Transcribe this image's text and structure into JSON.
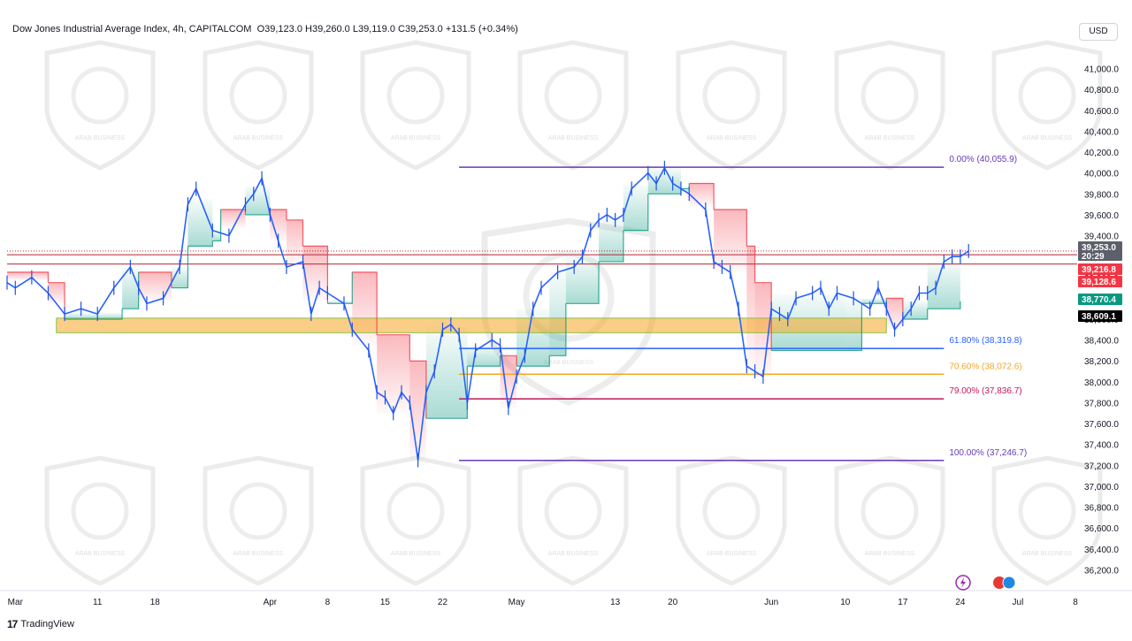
{
  "header": {
    "title": "Dow Jones Industrial Average Index, 4h, CAPITALCOM",
    "ohlc": "O39,123.0  H39,260.0  L39,119.0  C39,253.0  +131.5 (+0.34%)",
    "currency_button": "USD"
  },
  "footer": {
    "brand_logo": "17",
    "brand_name": "TradingView"
  },
  "watermark": {
    "text": "ARAB BUSINESS"
  },
  "chart_data": {
    "type": "line",
    "ylim": [
      36000,
      41200
    ],
    "y_ticks": [
      "41,000.0",
      "40,800.0",
      "40,600.0",
      "40,400.0",
      "40,200.0",
      "40,000.0",
      "39,800.0",
      "39,600.0",
      "39,400.0",
      "39,200.0",
      "39,000.0",
      "38,800.0",
      "38,600.0",
      "38,400.0",
      "38,200.0",
      "38,000.0",
      "37,800.0",
      "37,600.0",
      "37,400.0",
      "37,200.0",
      "37,000.0",
      "36,800.0",
      "36,600.0",
      "36,400.0",
      "36,200.0"
    ],
    "y_tick_values": [
      41000,
      40800,
      40600,
      40400,
      40200,
      40000,
      39800,
      39600,
      39400,
      39200,
      39000,
      38800,
      38600,
      38400,
      38200,
      38000,
      37800,
      37600,
      37400,
      37200,
      37000,
      36800,
      36600,
      36400,
      36200
    ],
    "x_ticks": [
      {
        "label": "Mar",
        "day": 1
      },
      {
        "label": "11",
        "day": 11
      },
      {
        "label": "18",
        "day": 18
      },
      {
        "label": "Apr",
        "day": 32
      },
      {
        "label": "8",
        "day": 39
      },
      {
        "label": "15",
        "day": 46
      },
      {
        "label": "22",
        "day": 53
      },
      {
        "label": "May",
        "day": 62
      },
      {
        "label": "13",
        "day": 74
      },
      {
        "label": "20",
        "day": 81
      },
      {
        "label": "Jun",
        "day": 93
      },
      {
        "label": "10",
        "day": 102
      },
      {
        "label": "17",
        "day": 109
      },
      {
        "label": "24",
        "day": 116
      },
      {
        "label": "Jul",
        "day": 123
      },
      {
        "label": "8",
        "day": 130
      }
    ],
    "price_series": [
      {
        "day": 0,
        "value": 38950
      },
      {
        "day": 1,
        "value": 38900
      },
      {
        "day": 3,
        "value": 39000
      },
      {
        "day": 5,
        "value": 38850
      },
      {
        "day": 7,
        "value": 38650
      },
      {
        "day": 9,
        "value": 38700
      },
      {
        "day": 11,
        "value": 38650
      },
      {
        "day": 13,
        "value": 38900
      },
      {
        "day": 15,
        "value": 39100
      },
      {
        "day": 16,
        "value": 38900
      },
      {
        "day": 17,
        "value": 38750
      },
      {
        "day": 19,
        "value": 38800
      },
      {
        "day": 21,
        "value": 39100
      },
      {
        "day": 22,
        "value": 39700
      },
      {
        "day": 23,
        "value": 39850
      },
      {
        "day": 25,
        "value": 39450
      },
      {
        "day": 27,
        "value": 39400
      },
      {
        "day": 29,
        "value": 39700
      },
      {
        "day": 30,
        "value": 39800
      },
      {
        "day": 31,
        "value": 39950
      },
      {
        "day": 32,
        "value": 39600
      },
      {
        "day": 33,
        "value": 39350
      },
      {
        "day": 34,
        "value": 39100
      },
      {
        "day": 36,
        "value": 39150
      },
      {
        "day": 37,
        "value": 38650
      },
      {
        "day": 38,
        "value": 38900
      },
      {
        "day": 39,
        "value": 38850
      },
      {
        "day": 41,
        "value": 38750
      },
      {
        "day": 42,
        "value": 38500
      },
      {
        "day": 44,
        "value": 38300
      },
      {
        "day": 45,
        "value": 37900
      },
      {
        "day": 46,
        "value": 37850
      },
      {
        "day": 47,
        "value": 37700
      },
      {
        "day": 48,
        "value": 37900
      },
      {
        "day": 49,
        "value": 37800
      },
      {
        "day": 50,
        "value": 37250
      },
      {
        "day": 51,
        "value": 37900
      },
      {
        "day": 52,
        "value": 38100
      },
      {
        "day": 53,
        "value": 38500
      },
      {
        "day": 54,
        "value": 38550
      },
      {
        "day": 55,
        "value": 38450
      },
      {
        "day": 56,
        "value": 37800
      },
      {
        "day": 57,
        "value": 38300
      },
      {
        "day": 59,
        "value": 38400
      },
      {
        "day": 60,
        "value": 38350
      },
      {
        "day": 61,
        "value": 37750
      },
      {
        "day": 62,
        "value": 38050
      },
      {
        "day": 63,
        "value": 38250
      },
      {
        "day": 64,
        "value": 38700
      },
      {
        "day": 65,
        "value": 38900
      },
      {
        "day": 67,
        "value": 39050
      },
      {
        "day": 69,
        "value": 39100
      },
      {
        "day": 70,
        "value": 39200
      },
      {
        "day": 71,
        "value": 39450
      },
      {
        "day": 72,
        "value": 39550
      },
      {
        "day": 73,
        "value": 39600
      },
      {
        "day": 74,
        "value": 39550
      },
      {
        "day": 75,
        "value": 39600
      },
      {
        "day": 76,
        "value": 39850
      },
      {
        "day": 78,
        "value": 40000
      },
      {
        "day": 79,
        "value": 39900
      },
      {
        "day": 80,
        "value": 40050
      },
      {
        "day": 81,
        "value": 39900
      },
      {
        "day": 82,
        "value": 39850
      },
      {
        "day": 83,
        "value": 39800
      },
      {
        "day": 85,
        "value": 39650
      },
      {
        "day": 86,
        "value": 39150
      },
      {
        "day": 87,
        "value": 39100
      },
      {
        "day": 88,
        "value": 39050
      },
      {
        "day": 89,
        "value": 38700
      },
      {
        "day": 90,
        "value": 38150
      },
      {
        "day": 91,
        "value": 38100
      },
      {
        "day": 92,
        "value": 38050
      },
      {
        "day": 93,
        "value": 38700
      },
      {
        "day": 94,
        "value": 38650
      },
      {
        "day": 95,
        "value": 38600
      },
      {
        "day": 96,
        "value": 38800
      },
      {
        "day": 98,
        "value": 38850
      },
      {
        "day": 99,
        "value": 38900
      },
      {
        "day": 100,
        "value": 38700
      },
      {
        "day": 101,
        "value": 38850
      },
      {
        "day": 103,
        "value": 38800
      },
      {
        "day": 105,
        "value": 38700
      },
      {
        "day": 106,
        "value": 38900
      },
      {
        "day": 107,
        "value": 38700
      },
      {
        "day": 108,
        "value": 38500
      },
      {
        "day": 109,
        "value": 38600
      },
      {
        "day": 110,
        "value": 38700
      },
      {
        "day": 111,
        "value": 38850
      },
      {
        "day": 112,
        "value": 38850
      },
      {
        "day": 113,
        "value": 38900
      },
      {
        "day": 114,
        "value": 39150
      },
      {
        "day": 115,
        "value": 39200
      },
      {
        "day": 116,
        "value": 39200
      },
      {
        "day": 117,
        "value": 39253
      }
    ],
    "supertrend": [
      {
        "day": 0,
        "value": 39050,
        "trend": "down"
      },
      {
        "day": 5,
        "value": 38950,
        "trend": "down"
      },
      {
        "day": 7,
        "value": 38600,
        "trend": "up"
      },
      {
        "day": 14,
        "value": 38700,
        "trend": "up"
      },
      {
        "day": 16,
        "value": 39050,
        "trend": "down"
      },
      {
        "day": 20,
        "value": 38900,
        "trend": "up"
      },
      {
        "day": 22,
        "value": 39300,
        "trend": "up"
      },
      {
        "day": 25,
        "value": 39350,
        "trend": "up"
      },
      {
        "day": 26,
        "value": 39650,
        "trend": "down"
      },
      {
        "day": 29,
        "value": 39600,
        "trend": "up"
      },
      {
        "day": 32,
        "value": 39650,
        "trend": "down"
      },
      {
        "day": 34,
        "value": 39550,
        "trend": "down"
      },
      {
        "day": 36,
        "value": 39300,
        "trend": "down"
      },
      {
        "day": 39,
        "value": 38750,
        "trend": "up"
      },
      {
        "day": 42,
        "value": 39050,
        "trend": "down"
      },
      {
        "day": 45,
        "value": 38450,
        "trend": "down"
      },
      {
        "day": 49,
        "value": 38200,
        "trend": "down"
      },
      {
        "day": 51,
        "value": 37650,
        "trend": "up"
      },
      {
        "day": 56,
        "value": 38150,
        "trend": "up"
      },
      {
        "day": 60,
        "value": 38250,
        "trend": "down"
      },
      {
        "day": 62,
        "value": 38150,
        "trend": "up"
      },
      {
        "day": 66,
        "value": 38250,
        "trend": "up"
      },
      {
        "day": 68,
        "value": 38750,
        "trend": "up"
      },
      {
        "day": 72,
        "value": 39150,
        "trend": "up"
      },
      {
        "day": 75,
        "value": 39450,
        "trend": "up"
      },
      {
        "day": 78,
        "value": 39800,
        "trend": "up"
      },
      {
        "day": 82,
        "value": 39850,
        "trend": "up"
      },
      {
        "day": 83,
        "value": 39900,
        "trend": "down"
      },
      {
        "day": 86,
        "value": 39650,
        "trend": "down"
      },
      {
        "day": 90,
        "value": 39300,
        "trend": "down"
      },
      {
        "day": 91,
        "value": 38950,
        "trend": "down"
      },
      {
        "day": 93,
        "value": 38300,
        "trend": "up"
      },
      {
        "day": 102,
        "value": 38300,
        "trend": "up"
      },
      {
        "day": 104,
        "value": 38750,
        "trend": "up"
      },
      {
        "day": 107,
        "value": 38800,
        "trend": "down"
      },
      {
        "day": 109,
        "value": 38600,
        "trend": "up"
      },
      {
        "day": 112,
        "value": 38700,
        "trend": "up"
      },
      {
        "day": 116,
        "value": 38770,
        "trend": "up"
      }
    ],
    "zone": {
      "day_from": 6,
      "day_to": 107,
      "y_from": 38470,
      "y_to": 38610
    },
    "horizontal_lines": [
      39253,
      39216.8,
      39128.6
    ],
    "fibonacci": {
      "day_from": 55,
      "day_to": 114,
      "levels": [
        {
          "label": "0.00% (40,055.9)",
          "value": 40055.9,
          "color": "#673ab7"
        },
        {
          "label": "61.80% (38,319.8)",
          "value": 38319.8,
          "color": "#2962ff"
        },
        {
          "label": "70.60% (38,072.6)",
          "value": 38072.6,
          "color": "#f5a623"
        },
        {
          "label": "79.00% (37,836.7)",
          "value": 37836.7,
          "color": "#c2185b"
        },
        {
          "label": "100.00% (37,246.7)",
          "value": 37246.7,
          "color": "#673ab7"
        }
      ]
    },
    "price_tags": [
      {
        "label": "39,253.0",
        "value": 39253.0,
        "color": "#5d606b",
        "sub": "20:29"
      },
      {
        "label": "39,216.8",
        "value": 39216.8,
        "color": "#f23645"
      },
      {
        "label": "39,128.6",
        "value": 39128.6,
        "color": "#f23645"
      },
      {
        "label": "38,770.4",
        "value": 38770.4,
        "color": "#089981"
      },
      {
        "label": "38,609.1",
        "value": 38609.1,
        "color": "#000000"
      }
    ]
  }
}
